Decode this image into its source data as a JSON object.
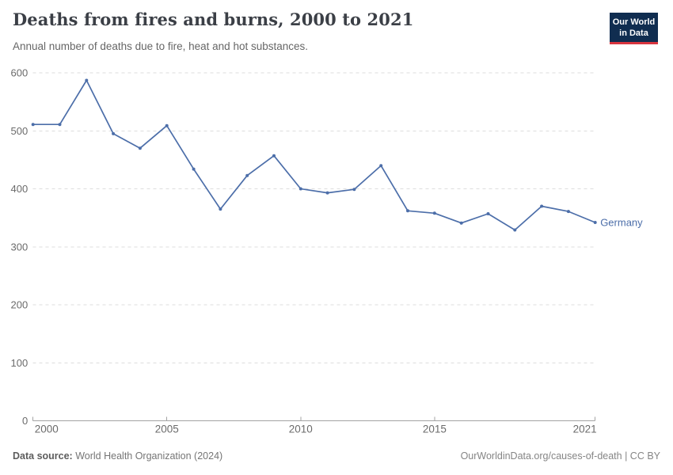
{
  "header": {
    "title": "Deaths from fires and burns, 2000 to 2021",
    "subtitle": "Annual number of deaths due to fire, heat and hot substances.",
    "logo": {
      "line1": "Our World",
      "line2": "in Data"
    }
  },
  "chart_data": {
    "type": "line",
    "title": "Deaths from fires and burns, 2000 to 2021",
    "subtitle": "Annual number of deaths due to fire, heat and hot substances.",
    "xlabel": "",
    "ylabel": "",
    "xlim": [
      2000,
      2021
    ],
    "ylim": [
      0,
      600
    ],
    "x_ticks": [
      2000,
      2005,
      2010,
      2015,
      2021
    ],
    "y_ticks": [
      0,
      100,
      200,
      300,
      400,
      500,
      600
    ],
    "grid": "horizontal-dashed",
    "legend_position": "right-of-last-point",
    "series": [
      {
        "name": "Germany",
        "color": "#4c6ea9",
        "x": [
          2000,
          2001,
          2002,
          2003,
          2004,
          2005,
          2006,
          2007,
          2008,
          2009,
          2010,
          2011,
          2012,
          2013,
          2014,
          2015,
          2016,
          2017,
          2018,
          2019,
          2020,
          2021
        ],
        "values": [
          511,
          511,
          587,
          495,
          470,
          509,
          434,
          365,
          423,
          457,
          400,
          393,
          399,
          440,
          362,
          358,
          341,
          357,
          329,
          370,
          361,
          342
        ]
      }
    ]
  },
  "footer": {
    "source_label": "Data source:",
    "source_value": "World Health Organization (2024)",
    "attribution": "OurWorldinData.org/causes-of-death | CC BY"
  },
  "colors": {
    "line": "#4c6ea9",
    "grid": "#dddddd",
    "axis": "#a3a3a3",
    "tick_label": "#6b6b6b",
    "title": "#3b3f46",
    "subtitle": "#666666",
    "logo_bg": "#102d50",
    "logo_red": "#d8353f",
    "footer_text": "#757575"
  }
}
